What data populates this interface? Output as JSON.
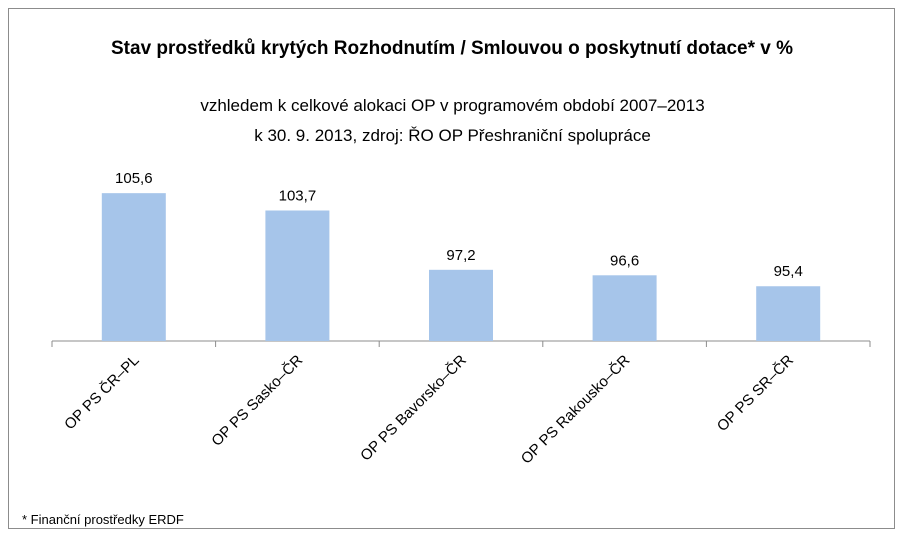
{
  "chart_data": {
    "type": "bar",
    "title": "Stav prostředků krytých Rozhodnutím / Smlouvou o poskytnutí dotace* v %",
    "subtitle": [
      "vzhledem k celkové alokaci OP v programovém období 2007–2013",
      "k 30. 9. 2013, zdroj: ŘO OP Přeshraniční spolupráce"
    ],
    "categories": [
      "OP PS ČR–PL",
      "OP PS Sasko–ČR",
      "OP PS Bavorsko–ČR",
      "OP PS Rakousko–ČR",
      "OP PS SR–ČR"
    ],
    "values": [
      105.6,
      103.7,
      97.2,
      96.6,
      95.4
    ],
    "value_labels": [
      "105,6",
      "103,7",
      "97,2",
      "96,6",
      "95,4"
    ],
    "color": "#a6c5ea",
    "ylim": [
      89.4,
      110
    ],
    "footnote": "* Finanční prostředky ERDF"
  }
}
